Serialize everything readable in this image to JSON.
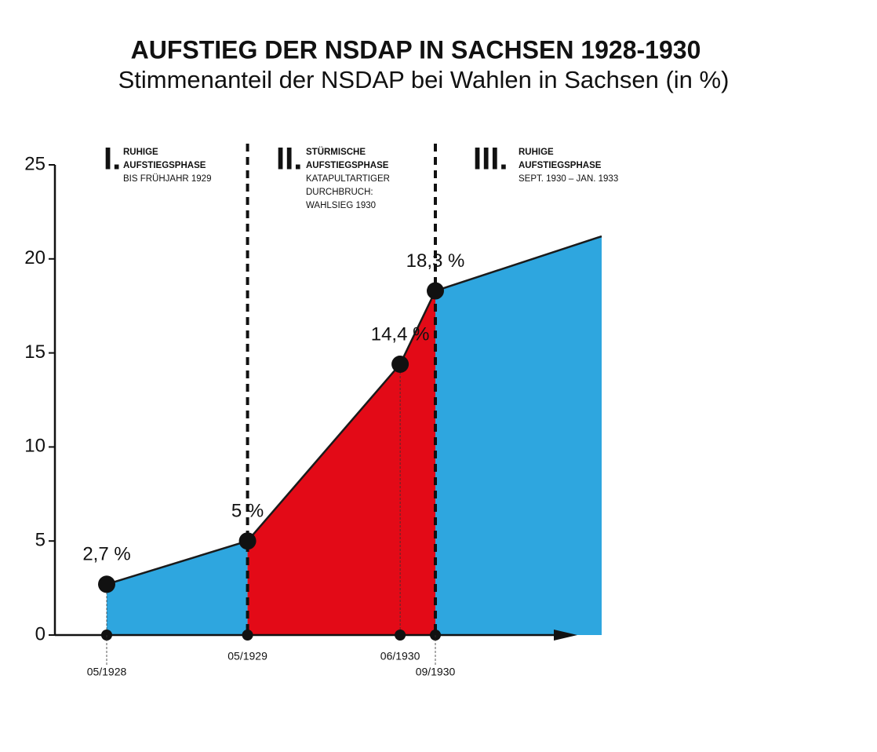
{
  "chart_data": {
    "type": "area",
    "title": "AUFSTIEG DER NSDAP IN SACHSEN 1928-1930",
    "subtitle": "Stimmenanteil der NSDAP bei Wahlen in Sachsen (in %)",
    "categories": [
      "05/1928",
      "05/1929",
      "06/1930",
      "09/1930",
      null
    ],
    "values": [
      2.7,
      5,
      14.4,
      18.3,
      21.2
    ],
    "value_labels": [
      "2,7 %",
      "5 %",
      "14,4 %",
      "18,3 %",
      null
    ],
    "ylim": [
      0,
      25
    ],
    "yticks": [
      0,
      5,
      10,
      15,
      20,
      25
    ],
    "dividers": [
      1,
      3
    ],
    "phases": [
      {
        "numeral": "I.",
        "title": [
          "RUHIGE",
          "AUFSTIEGSPHASE"
        ],
        "text": [
          "BIS FRÜHJAHR 1929"
        ],
        "color": "#2ea6df"
      },
      {
        "numeral": "II.",
        "title": [
          "STÜRMISCHE",
          "AUFSTIEGSPHASE"
        ],
        "text": [
          "KATAPULTARTIGER",
          "DURCHBRUCH:",
          "WAHLSIEG 1930"
        ],
        "color": "#e30a17"
      },
      {
        "numeral": "III.",
        "title": [
          "RUHIGE",
          "AUFSTIEGSPHASE"
        ],
        "text": [
          "SEPT. 1930 – JAN. 1933"
        ],
        "color": "#2ea6df"
      }
    ]
  }
}
